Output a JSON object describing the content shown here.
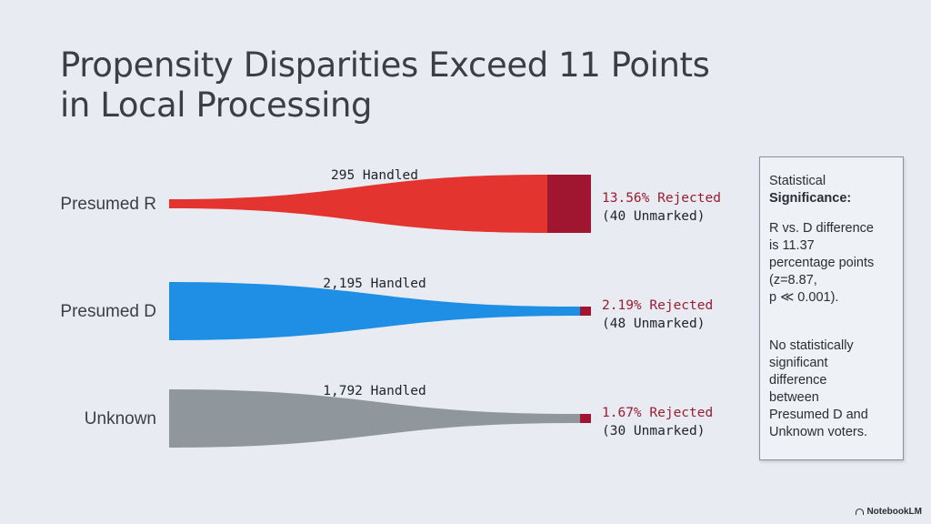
{
  "title_lines": [
    "Propensity Disparities Exceed 11 Points",
    "in Local Processing"
  ],
  "chart_data": {
    "type": "funnel",
    "series": [
      {
        "name": "Presumed R",
        "handled_label": "295 Handled",
        "handled": 295,
        "rejected_pct": 13.56,
        "rejected_label": "13.56% Rejected",
        "unmarked_label": "(40 Unmarked)",
        "color": "#e3342f",
        "rejected_color": "#a01530"
      },
      {
        "name": "Presumed D",
        "handled_label": "2,195 Handled",
        "handled": 2195,
        "rejected_pct": 2.19,
        "rejected_label": "2.19% Rejected",
        "unmarked_label": "(48 Unmarked)",
        "color": "#1f8fe6",
        "rejected_color": "#a01530"
      },
      {
        "name": "Unknown",
        "handled_label": "1,792 Handled",
        "handled": 1792,
        "rejected_pct": 1.67,
        "rejected_label": "1.67% Rejected",
        "unmarked_label": "(30 Unmarked)",
        "color": "#8f979d",
        "rejected_color": "#a01530"
      }
    ]
  },
  "stats": {
    "heading_1": "Statistical",
    "heading_2": "Significance:",
    "para1": [
      "R vs. D difference",
      "is 11.37",
      "percentage points",
      "(z=8.87,",
      "p ≪ 0.001)."
    ],
    "para2": [
      "No statistically",
      "significant",
      "difference",
      "between",
      "Presumed D and",
      "Unknown voters."
    ]
  },
  "brand": "NotebookLM"
}
